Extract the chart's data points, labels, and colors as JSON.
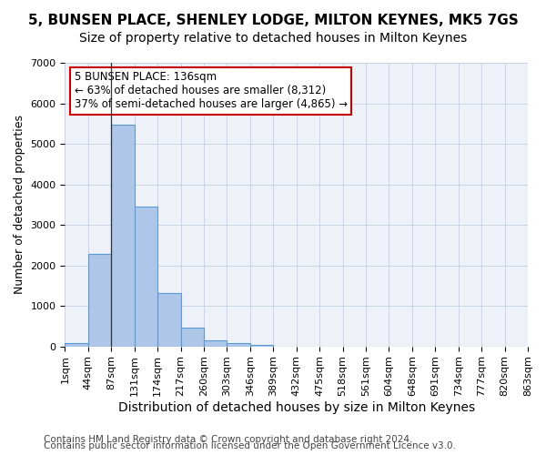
{
  "title_line1": "5, BUNSEN PLACE, SHENLEY LODGE, MILTON KEYNES, MK5 7GS",
  "title_line2": "Size of property relative to detached houses in Milton Keynes",
  "xlabel": "Distribution of detached houses by size in Milton Keynes",
  "ylabel": "Number of detached properties",
  "footer_line1": "Contains HM Land Registry data © Crown copyright and database right 2024.",
  "footer_line2": "Contains public sector information licensed under the Open Government Licence v3.0.",
  "bar_values": [
    75,
    2280,
    5480,
    3440,
    1310,
    460,
    155,
    80,
    45,
    0,
    0,
    0,
    0,
    0,
    0,
    0,
    0,
    0,
    0,
    0
  ],
  "bar_labels": [
    "1sqm",
    "44sqm",
    "87sqm",
    "131sqm",
    "174sqm",
    "217sqm",
    "260sqm",
    "303sqm",
    "346sqm",
    "389sqm",
    "432sqm",
    "475sqm",
    "518sqm",
    "561sqm",
    "604sqm",
    "648sqm",
    "691sqm",
    "734sqm",
    "777sqm",
    "820sqm"
  ],
  "x_edge_labels": [
    "1sqm",
    "44sqm",
    "87sqm",
    "131sqm",
    "174sqm",
    "217sqm",
    "260sqm",
    "303sqm",
    "346sqm",
    "389sqm",
    "432sqm",
    "475sqm",
    "518sqm",
    "561sqm",
    "604sqm",
    "648sqm",
    "691sqm",
    "734sqm",
    "777sqm",
    "820sqm",
    "863sqm"
  ],
  "bar_color": "#aec6e8",
  "bar_edge_color": "#5b9bd5",
  "grid_color": "#c8d4e8",
  "bg_color": "#eef2f8",
  "annotation_text": "5 BUNSEN PLACE: 136sqm\n← 63% of detached houses are smaller (8,312)\n37% of semi-detached houses are larger (4,865) →",
  "annotation_box_color": "#ffffff",
  "annotation_border_color": "#cc0000",
  "vline_x": 2,
  "ylim": [
    0,
    7000
  ],
  "yticks": [
    0,
    1000,
    2000,
    3000,
    4000,
    5000,
    6000,
    7000
  ],
  "title_fontsize": 11,
  "subtitle_fontsize": 10,
  "xlabel_fontsize": 10,
  "ylabel_fontsize": 9,
  "tick_fontsize": 8,
  "footer_fontsize": 7.5
}
